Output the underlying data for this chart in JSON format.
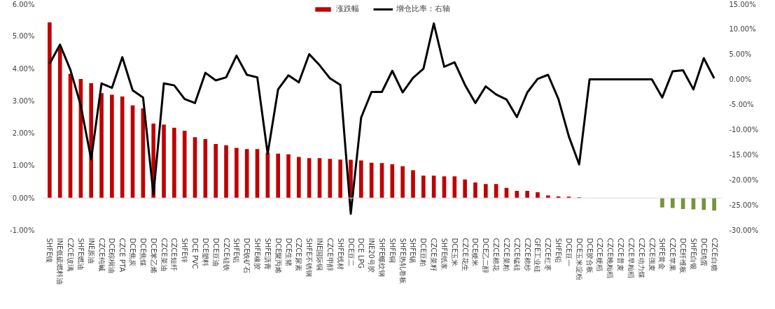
{
  "chart_data": {
    "type": "bar",
    "categories": [
      "SHFE镍",
      "INE低硫燃料油",
      "CZCE玻璃",
      "SHFE燃油",
      "INE原油",
      "CZCE纯碱",
      "DCE棕榈油",
      "CZCE PTA",
      "DCE焦炭",
      "DCE焦煤",
      "DCE苯乙烯",
      "CZCE菜油",
      "CZCE短纤",
      "SHFE锌",
      "DCE PVC",
      "DCE塑料",
      "DCE豆油",
      "CZCE硅铁",
      "SHFE铝",
      "DCE铁矿石",
      "SHFE橡胶",
      "SHFE沥青",
      "DCE聚丙烯",
      "DCE生猪",
      "CZCE尿素",
      "SHFE不锈钢",
      "INE国际铜",
      "CZCE甲醇",
      "SHFE线材",
      "DCE豆二",
      "DCE LPG",
      "INE20号胶",
      "SHFE螺纹钢",
      "SHFE铜",
      "SHFE热轧卷板",
      "SHFE锡",
      "DCE豆粕",
      "CZCE菜籽",
      "SHFE纸浆",
      "DCE玉米",
      "CZCE花生",
      "DCE粳米",
      "DCE乙二醇",
      "CZCE棉花",
      "CZCE菜粕",
      "CZCE锰硅",
      "CZCE棉纱",
      "GFE工业硅",
      "CZCE红枣",
      "SHFE铅",
      "DCE豆一",
      "DCE玉米淀粉",
      "DCE胶合板",
      "CZCE粳稻",
      "CZCE晚籼稻",
      "CZCE普麦",
      "CZCE早籼稻",
      "CZCE动力煤",
      "CZCE强麦",
      "SHFE黄金",
      "CZCE苹果",
      "DCE纤维板",
      "SHFE白银",
      "DCE鸡蛋",
      "CZCE白糖"
    ],
    "series": [
      {
        "name": "涨跌幅",
        "colors": [
          "#c00000",
          "#c00000",
          "#c00000",
          "#c00000",
          "#c00000",
          "#c00000",
          "#c00000",
          "#c00000",
          "#c00000",
          "#c00000",
          "#c00000",
          "#c00000",
          "#c00000",
          "#c00000",
          "#c00000",
          "#c00000",
          "#c00000",
          "#c00000",
          "#c00000",
          "#c00000",
          "#c00000",
          "#c00000",
          "#c00000",
          "#c00000",
          "#c00000",
          "#c00000",
          "#c00000",
          "#c00000",
          "#c00000",
          "#c00000",
          "#c00000",
          "#c00000",
          "#c00000",
          "#c00000",
          "#c00000",
          "#c00000",
          "#c00000",
          "#c00000",
          "#c00000",
          "#c00000",
          "#c00000",
          "#c00000",
          "#c00000",
          "#c00000",
          "#c00000",
          "#c00000",
          "#c00000",
          "#c00000",
          "#c00000",
          "#c00000",
          "#c00000",
          "#c00000",
          "#c00000",
          "#c00000",
          "#c00000",
          "#c00000",
          "#c00000",
          "#c00000",
          "#c00000",
          "#77933c",
          "#77933c",
          "#77933c",
          "#77933c",
          "#77933c",
          "#77933c"
        ],
        "values": [
          5.43,
          4.65,
          3.84,
          3.68,
          3.55,
          3.24,
          3.19,
          3.14,
          2.86,
          2.77,
          2.3,
          2.27,
          2.17,
          2.08,
          1.88,
          1.82,
          1.67,
          1.63,
          1.55,
          1.51,
          1.51,
          1.4,
          1.37,
          1.35,
          1.27,
          1.23,
          1.23,
          1.21,
          1.19,
          1.18,
          1.16,
          1.09,
          1.08,
          1.04,
          0.98,
          0.86,
          0.69,
          0.69,
          0.67,
          0.67,
          0.57,
          0.48,
          0.43,
          0.43,
          0.31,
          0.22,
          0.22,
          0.18,
          0.08,
          0.05,
          0.04,
          0.02,
          0,
          0,
          0,
          0,
          0,
          0,
          0,
          -0.29,
          -0.31,
          -0.34,
          -0.35,
          -0.37,
          -0.39
        ]
      },
      {
        "name": "增仓比率：右轴",
        "type": "line",
        "axis": "y2",
        "color": "#000000",
        "values": [
          3.1,
          6.9,
          1.9,
          -5.2,
          -15.9,
          -0.8,
          -1.7,
          4.4,
          -2.2,
          -3.6,
          -22.9,
          -0.8,
          -1.2,
          -3.9,
          -4.7,
          1.3,
          -0.2,
          0.4,
          4.7,
          0.9,
          0.4,
          -14.8,
          -2.0,
          0.8,
          -0.6,
          5.0,
          2.8,
          0.2,
          -1.1,
          -26.7,
          -7.6,
          -2.5,
          -2.5,
          1.7,
          -2.6,
          0.3,
          2.1,
          11.1,
          2.5,
          3.4,
          -1.1,
          -4.7,
          -1.4,
          -3.0,
          -4.0,
          -7.5,
          -2.6,
          0.1,
          0.9,
          -3.9,
          -11.3,
          -16.9,
          0,
          0,
          0,
          0,
          0,
          0,
          0,
          -3.6,
          1.6,
          1.8,
          -2.0,
          4.2,
          0.2
        ]
      }
    ],
    "ylim": [
      -1,
      6
    ],
    "yticks": [
      {
        "value": -1,
        "label": "-1.00%"
      },
      {
        "value": 0,
        "label": "0.00%"
      },
      {
        "value": 1,
        "label": "1.00%"
      },
      {
        "value": 2,
        "label": "2.00%"
      },
      {
        "value": 3,
        "label": "3.00%"
      },
      {
        "value": 4,
        "label": "4.00%"
      },
      {
        "value": 5,
        "label": "5.00%"
      },
      {
        "value": 6,
        "label": "6.00%"
      }
    ],
    "y2lim": [
      -30,
      15
    ],
    "y2ticks": [
      {
        "value": -30,
        "label": "-30.00%"
      },
      {
        "value": -25,
        "label": "-25.00%"
      },
      {
        "value": -20,
        "label": "-20.00%"
      },
      {
        "value": -15,
        "label": "-15.00%"
      },
      {
        "value": -10,
        "label": "-10.00%"
      },
      {
        "value": -5,
        "label": "-5.00%"
      },
      {
        "value": 0,
        "label": "0.00%"
      },
      {
        "value": 5,
        "label": "5.00%"
      },
      {
        "value": 10,
        "label": "10.00%"
      },
      {
        "value": 15,
        "label": "15.00%"
      }
    ],
    "grid": false,
    "ref_lines": [
      {
        "axis": "y",
        "value": 0,
        "color": "#d9d9d9"
      }
    ],
    "legend": "top",
    "line_style": "solid",
    "marker": "none"
  }
}
